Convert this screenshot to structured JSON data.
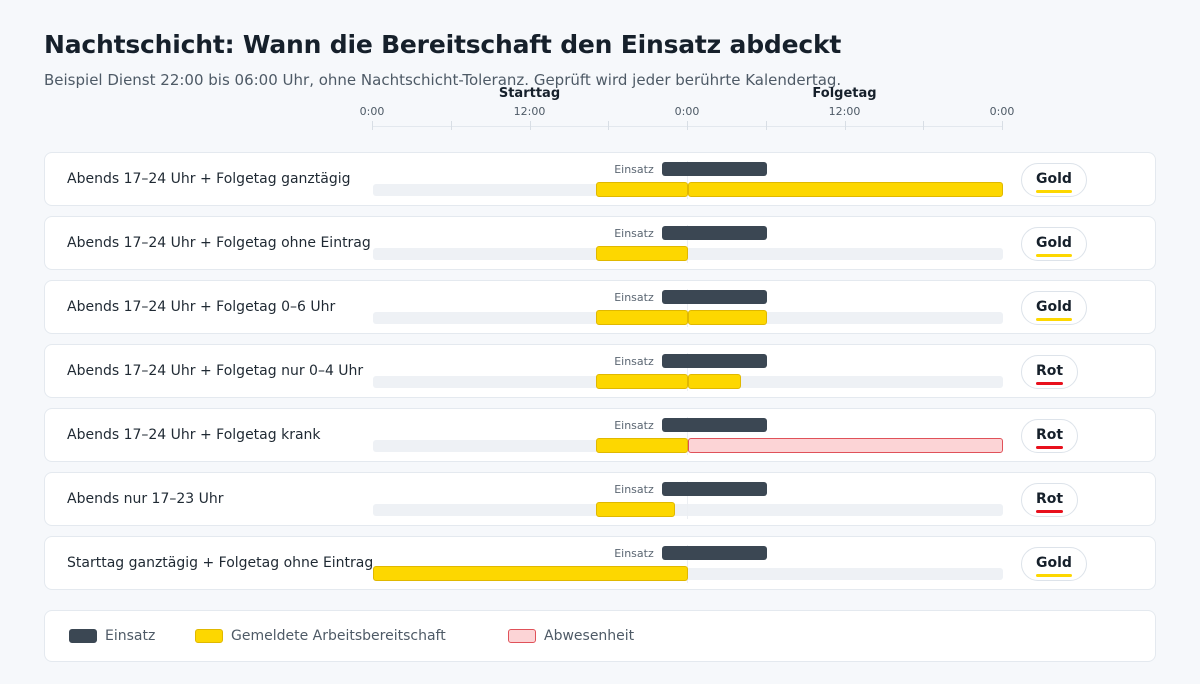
{
  "title": "Nachtschicht: Wann die Bereitschaft den Einsatz abdeckt",
  "subtitle": "Beispiel Dienst 22:00 bis 06:00 Uhr, ohne Nachtschicht-Toleranz. Geprüft wird jeder berührte Kalendertag.",
  "axis": {
    "days": [
      {
        "label": "Starttag",
        "hour": 12
      },
      {
        "label": "Folgetag",
        "hour": 36
      }
    ],
    "ticks": [
      {
        "label": "0:00",
        "hour": 0
      },
      {
        "label": "12:00",
        "hour": 12
      },
      {
        "label": "0:00",
        "hour": 24
      },
      {
        "label": "12:00",
        "hour": 36
      },
      {
        "label": "0:00",
        "hour": 48
      }
    ],
    "range_hours": [
      0,
      48
    ]
  },
  "einsatz_label": "Einsatz",
  "einsatz": {
    "start": 22,
    "end": 30
  },
  "rows": [
    {
      "label": "Abends 17–24 Uhr + Folgetag ganztägig",
      "status": "Gold",
      "segments": [
        {
          "type": "ready",
          "start": 17,
          "end": 24
        },
        {
          "type": "ready",
          "start": 24,
          "end": 48
        }
      ]
    },
    {
      "label": "Abends 17–24 Uhr + Folgetag ohne Eintrag",
      "status": "Gold",
      "segments": [
        {
          "type": "ready",
          "start": 17,
          "end": 24
        }
      ]
    },
    {
      "label": "Abends 17–24 Uhr + Folgetag 0–6 Uhr",
      "status": "Gold",
      "segments": [
        {
          "type": "ready",
          "start": 17,
          "end": 24
        },
        {
          "type": "ready",
          "start": 24,
          "end": 30
        }
      ]
    },
    {
      "label": "Abends 17–24 Uhr + Folgetag nur 0–4 Uhr",
      "status": "Rot",
      "segments": [
        {
          "type": "ready",
          "start": 17,
          "end": 24
        },
        {
          "type": "ready",
          "start": 24,
          "end": 28
        }
      ]
    },
    {
      "label": "Abends 17–24 Uhr + Folgetag krank",
      "status": "Rot",
      "segments": [
        {
          "type": "ready",
          "start": 17,
          "end": 24
        },
        {
          "type": "absent",
          "start": 24,
          "end": 48
        }
      ]
    },
    {
      "label": "Abends nur 17–23 Uhr",
      "status": "Rot",
      "segments": [
        {
          "type": "ready",
          "start": 17,
          "end": 23
        }
      ]
    },
    {
      "label": "Starttag ganztägig + Folgetag ohne Eintrag",
      "status": "Gold",
      "segments": [
        {
          "type": "ready",
          "start": 0,
          "end": 24
        }
      ]
    }
  ],
  "status_colors": {
    "Gold": "#fdd700",
    "Rot": "#e8101c"
  },
  "legend": [
    {
      "label": "Einsatz",
      "color": "#3b4753",
      "border": "#3b4753"
    },
    {
      "label": "Gemeldete Arbeitsbereitschaft",
      "color": "#fdd700",
      "border": "#e0b800"
    },
    {
      "label": "Abwesenheit",
      "color": "#fcd4d6",
      "border": "#e05159"
    }
  ]
}
